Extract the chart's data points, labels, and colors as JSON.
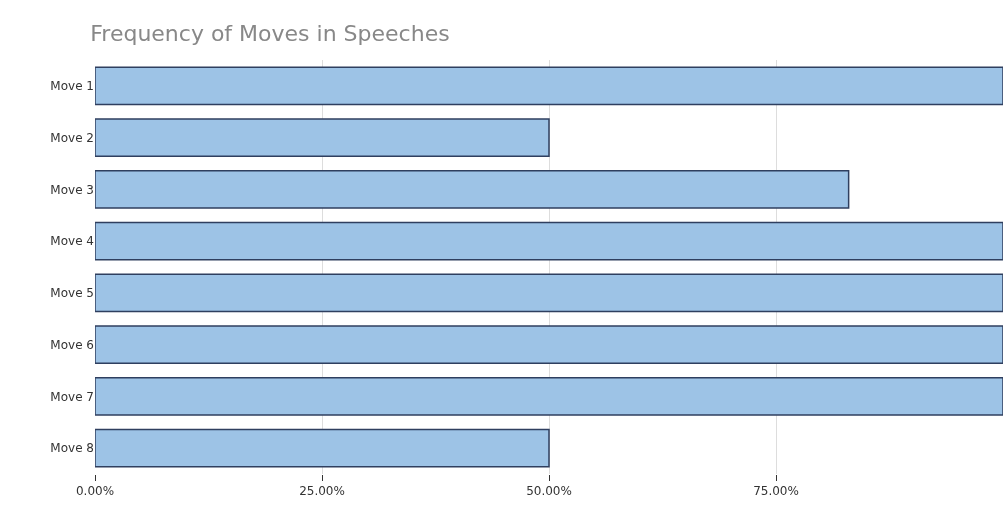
{
  "chart_data": {
    "type": "bar",
    "orientation": "horizontal",
    "title": "Frequency of Moves in Speeches",
    "categories": [
      "Move 1",
      "Move 2",
      "Move 3",
      "Move 4",
      "Move 5",
      "Move 6",
      "Move 7",
      "Move 8"
    ],
    "values": [
      100,
      50,
      83,
      100,
      100,
      100,
      100,
      50
    ],
    "color": "#9dc3e6",
    "xlim": [
      0,
      100
    ],
    "xticks": [
      {
        "value": 0,
        "label": "0.00%"
      },
      {
        "value": 25,
        "label": "25.00%"
      },
      {
        "value": 50,
        "label": "50.00%"
      },
      {
        "value": 75,
        "label": "75.00%"
      }
    ],
    "grid": "x"
  }
}
